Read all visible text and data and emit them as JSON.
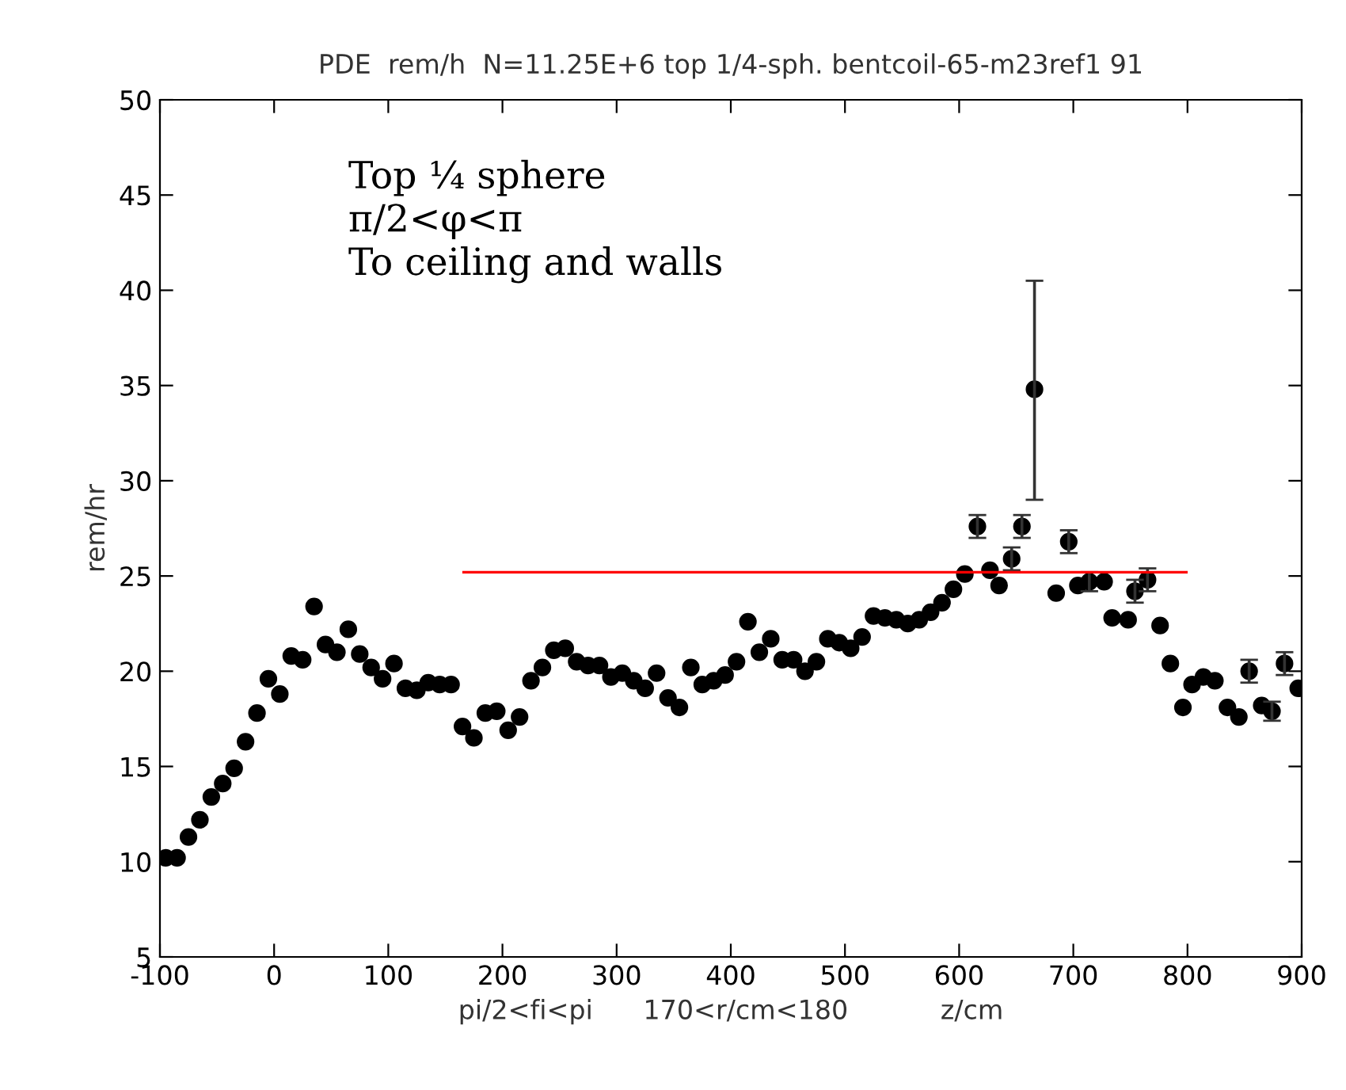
{
  "chart_data": {
    "type": "scatter",
    "title": "PDE  rem/h  N=11.25E+6 top 1/4-sph. bentcoil-65-m23ref1 91",
    "xlabel": "pi/2<fi<pi      170<r/cm<180           z/cm",
    "ylabel": "rem/hr",
    "annotations": [
      "Top ¼ sphere\nπ/2<φ<π\nTo ceiling and walls"
    ],
    "xlim": [
      -100,
      900
    ],
    "xticks": [
      -100,
      0,
      100,
      200,
      300,
      400,
      500,
      600,
      700,
      800,
      900
    ],
    "ylim": [
      5,
      50
    ],
    "yticks": [
      5,
      10,
      15,
      20,
      25,
      30,
      35,
      40,
      45,
      50
    ],
    "grid": false,
    "legend": false,
    "series": [
      {
        "color": "#000000",
        "marker": "circle",
        "x": [
          -95,
          -85,
          -75,
          -65,
          -55,
          -45,
          -35,
          -25,
          -15,
          -5,
          5,
          15,
          25,
          35,
          45,
          55,
          65,
          75,
          85,
          95,
          105,
          115,
          125,
          135,
          145,
          155,
          165,
          175,
          185,
          195,
          205,
          215,
          225,
          235,
          245,
          255,
          265,
          275,
          285,
          295,
          305,
          315,
          325,
          335,
          345,
          355,
          365,
          375,
          385,
          395,
          405,
          415,
          425,
          435,
          445,
          455,
          465,
          475,
          485,
          495,
          505,
          515,
          525,
          535,
          545,
          555,
          565,
          575,
          585,
          595,
          605,
          616,
          627,
          635,
          646,
          655,
          666,
          685,
          696,
          704,
          714,
          727,
          734,
          748,
          754,
          765,
          776,
          785,
          796,
          804,
          814,
          824,
          835,
          845,
          854,
          865,
          874,
          885,
          897
        ],
        "values": [
          10.2,
          10.2,
          11.3,
          12.2,
          13.4,
          14.1,
          14.9,
          16.3,
          17.8,
          19.6,
          18.8,
          20.8,
          20.6,
          23.4,
          21.4,
          21.0,
          22.2,
          20.9,
          20.2,
          19.6,
          20.4,
          19.1,
          19.0,
          19.4,
          19.3,
          19.3,
          17.1,
          16.5,
          17.8,
          17.9,
          16.9,
          17.6,
          19.5,
          20.2,
          21.1,
          21.2,
          20.5,
          20.3,
          20.3,
          19.7,
          19.9,
          19.5,
          19.1,
          19.9,
          18.6,
          18.1,
          20.2,
          19.3,
          19.5,
          19.8,
          20.5,
          22.6,
          21.0,
          21.7,
          20.6,
          20.6,
          20.0,
          20.5,
          21.7,
          21.5,
          21.2,
          21.8,
          22.9,
          22.8,
          22.7,
          22.5,
          22.7,
          23.1,
          23.6,
          24.3,
          25.1,
          27.6,
          25.3,
          24.5,
          25.9,
          27.6,
          34.8,
          24.1,
          26.8,
          24.5,
          24.7,
          24.7,
          22.8,
          22.7,
          24.2,
          24.8,
          22.4,
          20.4,
          18.1,
          19.3,
          19.7,
          19.5,
          18.1,
          17.6,
          20.0,
          18.2,
          17.9,
          20.4,
          19.1
        ],
        "errors": [
          null,
          null,
          null,
          null,
          null,
          null,
          null,
          null,
          null,
          null,
          null,
          null,
          null,
          null,
          null,
          null,
          null,
          null,
          null,
          null,
          null,
          null,
          null,
          null,
          null,
          null,
          null,
          null,
          null,
          null,
          null,
          null,
          null,
          null,
          null,
          null,
          null,
          null,
          null,
          null,
          null,
          null,
          null,
          null,
          null,
          null,
          null,
          null,
          null,
          null,
          null,
          null,
          null,
          null,
          null,
          null,
          null,
          null,
          null,
          null,
          null,
          null,
          null,
          null,
          null,
          null,
          null,
          null,
          null,
          null,
          null,
          0.6,
          null,
          null,
          0.6,
          0.6,
          [
            29.0,
            40.5
          ],
          null,
          0.6,
          null,
          0.5,
          null,
          null,
          null,
          0.6,
          0.6,
          null,
          null,
          null,
          null,
          null,
          null,
          null,
          null,
          0.6,
          null,
          0.5,
          0.6,
          null
        ]
      },
      {
        "type": "line",
        "color": "#ff0000",
        "marker": "none",
        "line_style": "solid",
        "x": [
          166,
          799
        ],
        "values": [
          25.2,
          25.2
        ]
      }
    ]
  }
}
